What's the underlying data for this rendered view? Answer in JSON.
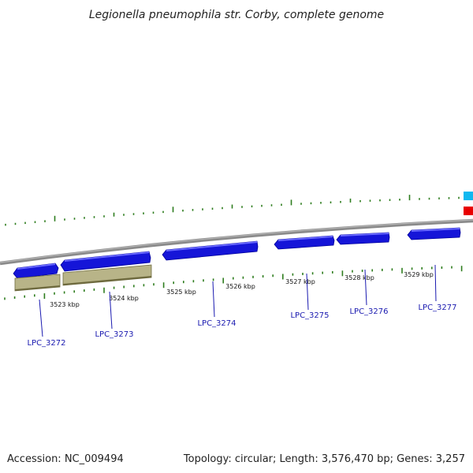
{
  "title": "Legionella pneumophila str. Corby, complete genome",
  "footer": {
    "accession": "Accession: NC_009494",
    "summary": "Topology: circular; Length: 3,576,470 bp; Genes: 3,257"
  },
  "colors": {
    "gene": "#1515d8",
    "gene_light": "#6a6aff",
    "gene_dark": "#00009a",
    "other_feature": "#b8b488",
    "other_feature_dark": "#6e6a3e",
    "backbone": "#808080",
    "tick": "#2e7d1e",
    "label_line": "#1a1ab0",
    "cyan_feature": "#10b8f0",
    "red_feature": "#e80000"
  },
  "ticks": [
    {
      "label": "3523 kbp"
    },
    {
      "label": "3524 kbp"
    },
    {
      "label": "3525 kbp"
    },
    {
      "label": "3526 kbp"
    },
    {
      "label": "3527 kbp"
    },
    {
      "label": "3528 kbp"
    },
    {
      "label": "3529 kbp"
    }
  ],
  "genes": [
    {
      "name": "LPC_3272"
    },
    {
      "name": "LPC_3273"
    },
    {
      "name": "LPC_3274"
    },
    {
      "name": "LPC_3275"
    },
    {
      "name": "LPC_3276"
    },
    {
      "name": "LPC_3277"
    }
  ]
}
